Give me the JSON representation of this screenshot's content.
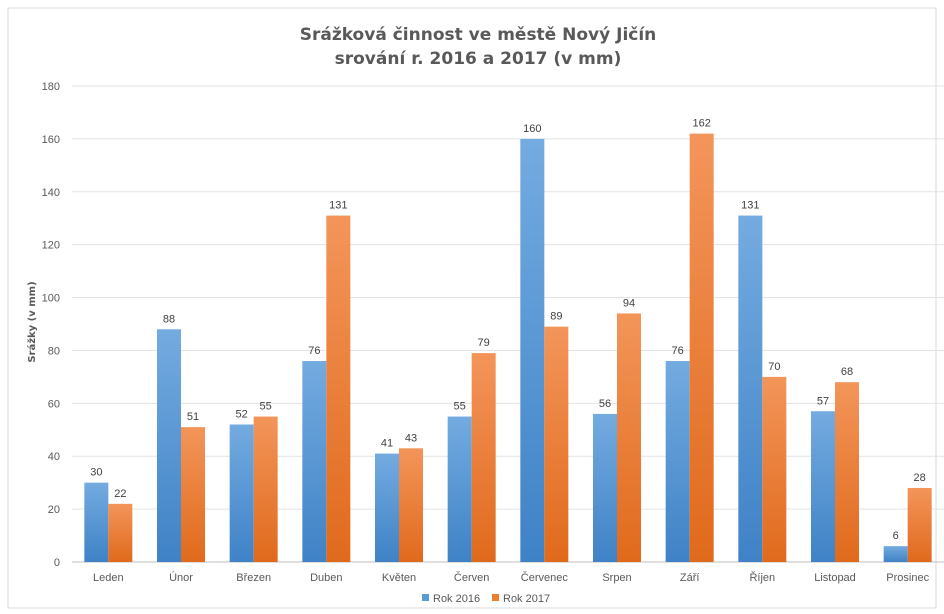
{
  "chart_data": {
    "type": "bar",
    "title": "Srážková činnost ve městě Nový Jičín",
    "subtitle": "srování r. 2016 a 2017 (v mm)",
    "xlabel": "",
    "ylabel": "Srážky (v mm)",
    "ylim": [
      0,
      180
    ],
    "yticks": [
      0,
      20,
      40,
      60,
      80,
      100,
      120,
      140,
      160,
      180
    ],
    "categories": [
      "Leden",
      "Únor",
      "Březen",
      "Duben",
      "Květen",
      "Červen",
      "Červenec",
      "Srpen",
      "Září",
      "Říjen",
      "Listopad",
      "Prosinec"
    ],
    "series": [
      {
        "name": "Rok 2016",
        "color": "#5b9bd5",
        "values": [
          30,
          88,
          52,
          76,
          41,
          55,
          160,
          56,
          76,
          131,
          57,
          6
        ]
      },
      {
        "name": "Rok 2017",
        "color": "#ed7d31",
        "values": [
          22,
          51,
          55,
          131,
          43,
          79,
          89,
          94,
          162,
          70,
          68,
          28
        ]
      }
    ],
    "grid": true,
    "legend_position": "bottom",
    "data_labels": true
  }
}
